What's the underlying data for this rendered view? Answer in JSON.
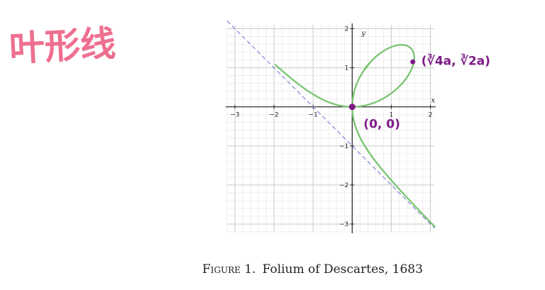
{
  "handwritten_title": "叶形线",
  "caption": {
    "prefix": "Figure 1.",
    "text": "Folium of Descartes, 1683"
  },
  "annotations": {
    "origin": "(0, 0)",
    "point": "(∛4a, ∛2a)"
  },
  "colors": {
    "curve": "#74c46c",
    "asymptote": "#8a8cdb",
    "annotation": "#7d1a87",
    "title": "#ee6f8f",
    "grid_major": "#c9c9c9",
    "grid_minor": "#e8e8e8"
  },
  "chart_data": {
    "type": "line",
    "title": "",
    "xlabel": "x",
    "ylabel": "y",
    "xlim": [
      -3.2,
      2.1
    ],
    "ylim": [
      -3.2,
      2.1
    ],
    "x_ticks": [
      -3,
      -2,
      -1,
      1,
      2
    ],
    "y_ticks": [
      2,
      1,
      -1,
      -2,
      -3
    ],
    "x_tick_labels": [
      "−3",
      "−2",
      "−1",
      "1",
      "2"
    ],
    "y_tick_labels": [
      "2",
      "1",
      "−1",
      "−2",
      "−3"
    ],
    "grid": true,
    "series": [
      {
        "equation": "x^3 + y^3 = 3axy",
        "a": 1,
        "style": "solid"
      },
      {
        "equation": "x + y + a = 0",
        "a": 1,
        "style": "dashed"
      }
    ],
    "points": [
      {
        "x": 0,
        "y": 0
      },
      {
        "x": 1.587,
        "y": 1.26
      }
    ]
  }
}
